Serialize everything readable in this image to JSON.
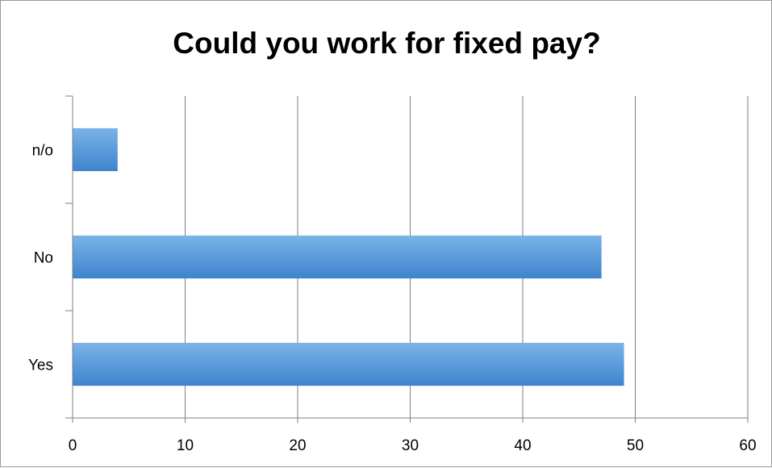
{
  "chart_data": {
    "type": "bar",
    "orientation": "horizontal",
    "title": "Could you work for fixed pay?",
    "xlabel": "",
    "ylabel": "",
    "categories": [
      "Yes",
      "No",
      "n/o"
    ],
    "values": [
      49,
      47,
      4
    ],
    "xlim": [
      0,
      60
    ],
    "x_ticks": [
      "0",
      "10",
      "20",
      "30",
      "40",
      "50",
      "60"
    ],
    "grid": "vertical",
    "legend": "none",
    "colors": {
      "bar_top": "#79b0e6",
      "bar_bottom": "#3f86cf",
      "grid": "#7f7f7f",
      "border": "#9a9a9a"
    }
  }
}
